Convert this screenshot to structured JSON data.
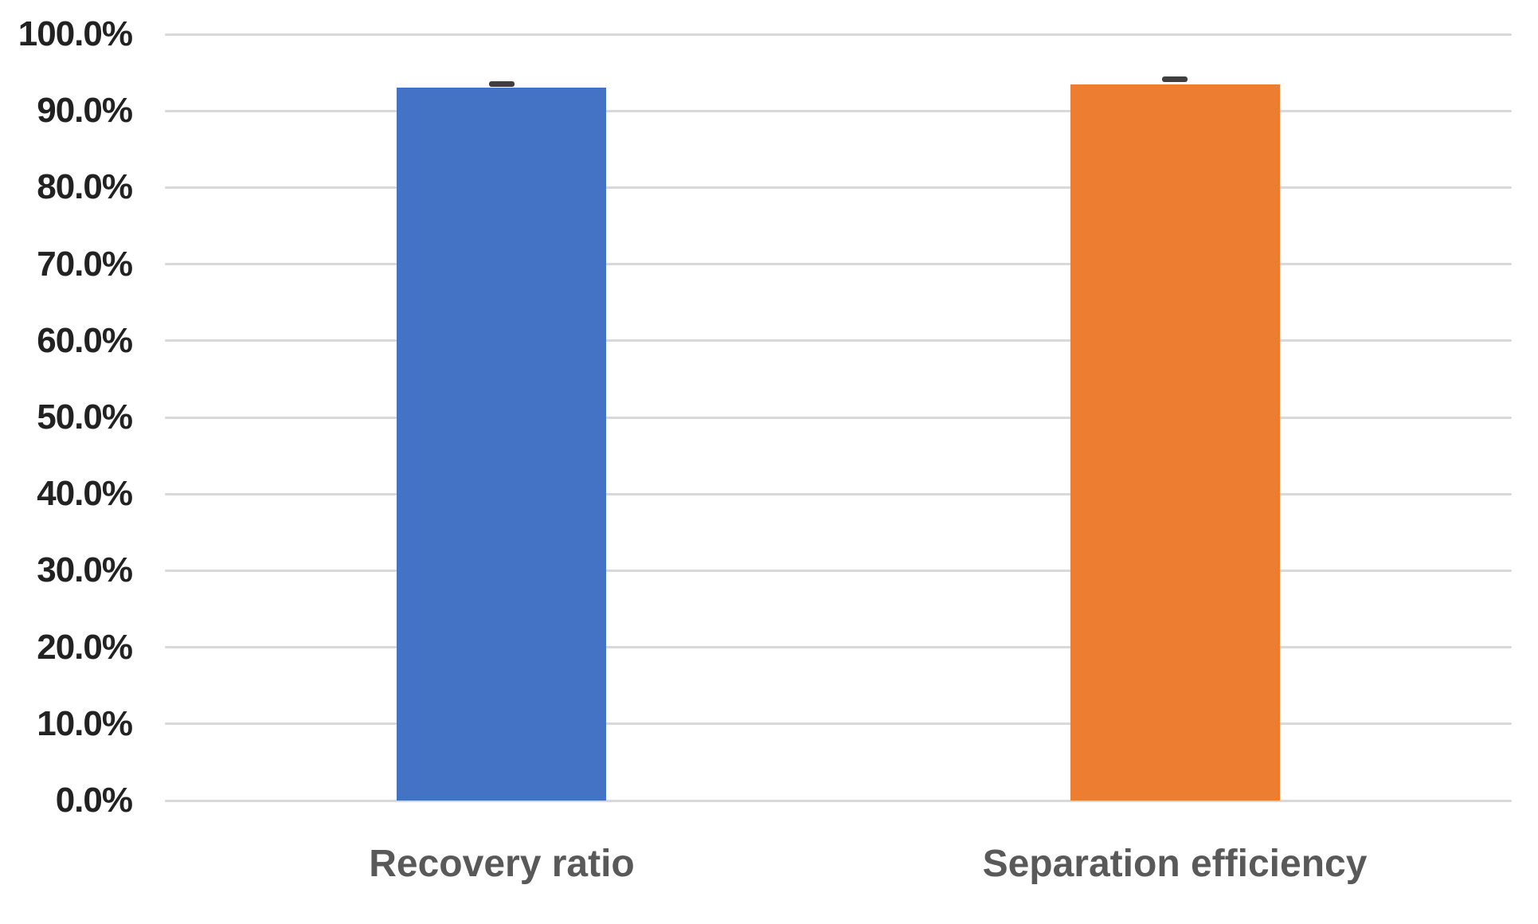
{
  "chart_data": {
    "type": "bar",
    "title": "",
    "xlabel": "",
    "ylabel": "",
    "categories": [
      "Recovery ratio",
      "Separation efficiency"
    ],
    "values": [
      93.0,
      93.5
    ],
    "error_plus": [
      0.5,
      0.6
    ],
    "bar_colors": [
      "#4472C4",
      "#ED7D31"
    ],
    "ylim": [
      0,
      100
    ],
    "ytick_step": 10,
    "ytick_labels": [
      "0.0%",
      "10.0%",
      "20.0%",
      "30.0%",
      "40.0%",
      "50.0%",
      "60.0%",
      "70.0%",
      "80.0%",
      "90.0%",
      "100.0%"
    ],
    "grid": true,
    "legend": false
  },
  "colors": {
    "background": "#FFFFFF",
    "gridline": "#D9D9D9",
    "axis_line": "#D9D9D9",
    "ytick_label": "#222222",
    "category_label": "#595959",
    "error_bar": "#3F3F3F"
  }
}
